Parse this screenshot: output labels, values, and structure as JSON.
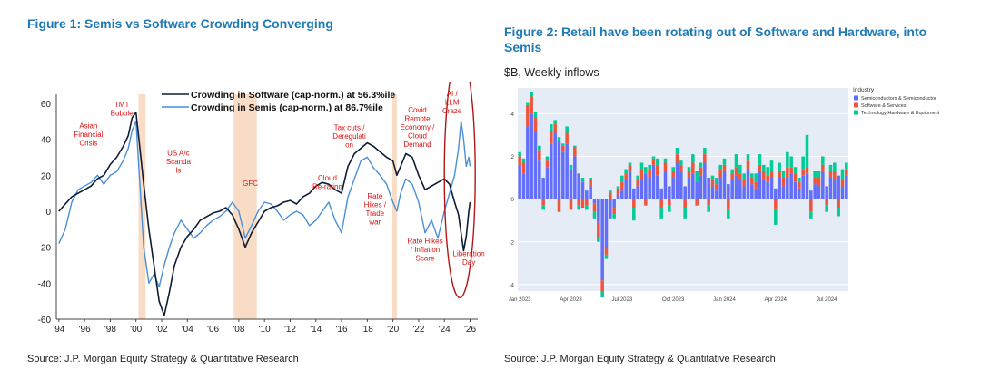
{
  "figure1": {
    "title": "Figure 1: Semis vs Software Crowding Converging",
    "source": "Source: J.P. Morgan Equity Strategy & Quantitative Research"
  },
  "figure2": {
    "title_line1": "Figure 2: Retail have been rotating out of Software and Hardware, into",
    "title_line2": "Semis",
    "subtitle": "$B, Weekly inflows",
    "source": "Source: J.P. Morgan Equity Strategy & Quantitative Research"
  },
  "chart_data": [
    {
      "type": "line",
      "title": "Figure 1: Semis vs Software Crowding Converging",
      "x_ticks": [
        "'94",
        "'96",
        "'98",
        "'00",
        "'02",
        "'04",
        "'06",
        "'08",
        "'10",
        "'12",
        "'14",
        "'16",
        "'18",
        "'20",
        "'22",
        "'24",
        "'26"
      ],
      "xlim": [
        1993.8,
        2026.6
      ],
      "ylim": [
        -60,
        65
      ],
      "y_ticks": [
        60,
        40,
        20,
        0,
        -20,
        -40,
        -60
      ],
      "legend_placement": "top-center",
      "grid": false,
      "colors": {
        "software": "#101c33",
        "semis": "#4a8fd6",
        "shade": "#f9dcc6",
        "annotation": "#dd1111",
        "ellipse": "#b01818"
      },
      "shaded_periods": [
        [
          2000.2,
          2000.75
        ],
        [
          2007.6,
          2009.4
        ],
        [
          2019.95,
          2020.3
        ]
      ],
      "series": [
        {
          "name": "Crowding in Software (cap-norm.) at 56.3%ile",
          "x": [
            1994.0,
            1994.5,
            1995.0,
            1995.5,
            1996.0,
            1996.5,
            1997.0,
            1997.5,
            1998.0,
            1998.5,
            1999.0,
            1999.4,
            1999.7,
            2000.0,
            2000.3,
            2000.6,
            2001.0,
            2001.4,
            2001.8,
            2002.2,
            2002.6,
            2003.0,
            2003.5,
            2004.0,
            2004.5,
            2005.0,
            2005.5,
            2006.0,
            2006.5,
            2007.0,
            2007.5,
            2008.0,
            2008.5,
            2009.0,
            2009.5,
            2010.0,
            2010.5,
            2011.0,
            2011.5,
            2012.0,
            2012.5,
            2013.0,
            2013.5,
            2014.0,
            2014.5,
            2015.0,
            2015.5,
            2016.0,
            2016.5,
            2017.0,
            2017.5,
            2018.0,
            2018.5,
            2019.0,
            2019.5,
            2020.0,
            2020.3,
            2020.6,
            2021.0,
            2021.5,
            2022.0,
            2022.5,
            2023.0,
            2023.5,
            2024.0,
            2024.4,
            2024.8,
            2025.1,
            2025.3,
            2025.5,
            2025.7,
            2025.9,
            2026.0
          ],
          "y": [
            0,
            4,
            8,
            10,
            12,
            14,
            18,
            20,
            26,
            30,
            36,
            42,
            52,
            55,
            35,
            15,
            -10,
            -30,
            -50,
            -58,
            -45,
            -30,
            -20,
            -14,
            -10,
            -5,
            -3,
            -1,
            0,
            2,
            -2,
            -10,
            -20,
            -12,
            -6,
            0,
            2,
            3,
            5,
            6,
            4,
            8,
            10,
            14,
            16,
            15,
            12,
            10,
            25,
            32,
            35,
            38,
            36,
            33,
            30,
            28,
            20,
            25,
            32,
            30,
            20,
            12,
            14,
            16,
            18,
            15,
            5,
            -2,
            -12,
            -22,
            -14,
            0,
            5
          ]
        },
        {
          "name": "Crowding in Semis (cap-norm.) at 86.7%ile",
          "x": [
            1994.0,
            1994.5,
            1995.0,
            1995.5,
            1996.0,
            1996.5,
            1997.0,
            1997.5,
            1998.0,
            1998.5,
            1999.0,
            1999.4,
            1999.7,
            2000.0,
            2000.3,
            2000.6,
            2001.0,
            2001.4,
            2001.8,
            2002.2,
            2002.6,
            2003.0,
            2003.5,
            2004.0,
            2004.5,
            2005.0,
            2005.5,
            2006.0,
            2006.5,
            2007.0,
            2007.5,
            2008.0,
            2008.5,
            2009.0,
            2009.5,
            2010.0,
            2010.5,
            2011.0,
            2011.5,
            2012.0,
            2012.5,
            2013.0,
            2013.5,
            2014.0,
            2014.5,
            2015.0,
            2015.5,
            2016.0,
            2016.5,
            2017.0,
            2017.5,
            2018.0,
            2018.5,
            2019.0,
            2019.5,
            2020.0,
            2020.3,
            2020.6,
            2021.0,
            2021.5,
            2022.0,
            2022.5,
            2023.0,
            2023.5,
            2024.0,
            2024.4,
            2024.8,
            2025.1,
            2025.3,
            2025.5,
            2025.7,
            2025.9,
            2026.0
          ],
          "y": [
            -18,
            -10,
            5,
            12,
            14,
            16,
            20,
            15,
            20,
            22,
            28,
            35,
            45,
            50,
            15,
            -20,
            -40,
            -35,
            -42,
            -30,
            -20,
            -12,
            -5,
            -10,
            -15,
            -12,
            -8,
            -5,
            -3,
            0,
            5,
            0,
            -15,
            -8,
            0,
            5,
            4,
            0,
            -5,
            -2,
            0,
            -2,
            -8,
            -5,
            0,
            5,
            -5,
            -12,
            8,
            18,
            28,
            30,
            24,
            20,
            15,
            5,
            0,
            10,
            18,
            15,
            5,
            -12,
            -5,
            -15,
            0,
            10,
            20,
            35,
            50,
            40,
            25,
            30,
            25
          ]
        }
      ],
      "annotations": [
        {
          "text": "TMT\nBubble",
          "x": 1998.9,
          "y": 58
        },
        {
          "text": "Asian\nFinancial\nCrisis",
          "x": 1996.3,
          "y": 46
        },
        {
          "text": "US A/c\nScanda\nls",
          "x": 2003.3,
          "y": 31
        },
        {
          "text": "GFC",
          "x": 2008.9,
          "y": 14
        },
        {
          "text": "Cloud\nRe-rating",
          "x": 2014.9,
          "y": 17
        },
        {
          "text": "Tax cuts /\nDeregulati\non",
          "x": 2016.6,
          "y": 45
        },
        {
          "text": "Rate\nHikes /\nTrade\nwar",
          "x": 2018.6,
          "y": 7
        },
        {
          "text": "Covid\nRemote\nEconomy /\nCloud\nDemand",
          "x": 2021.9,
          "y": 55
        },
        {
          "text": "Rate Hikes\n/ Inflation\nScare",
          "x": 2022.5,
          "y": -18
        },
        {
          "text": "AI /\nLLM\nCraze",
          "x": 2024.6,
          "y": 64
        },
        {
          "text": "Liberation\nDay",
          "x": 2025.9,
          "y": -25
        }
      ]
    },
    {
      "type": "bar",
      "stacked": true,
      "title": "Figure 2: Retail have been rotating out of Software and Hardware, into Semis",
      "ylabel": "$B, Weekly inflows",
      "ylim": [
        -4.3,
        5.2
      ],
      "y_ticks": [
        4,
        2,
        0,
        -2,
        -4
      ],
      "x_ticks": [
        "Jan 2023",
        "Apr 2023",
        "Jul 2023",
        "Oct 2023",
        "Jan 2024",
        "Apr 2024",
        "Jul 2024"
      ],
      "legend_title": "Industry",
      "plot_background": "#e5ecf6",
      "series": [
        {
          "name": "Semiconductors & Semiconductor",
          "color": "#636efa",
          "values": [
            1.6,
            1.2,
            3.4,
            4.0,
            3.2,
            1.8,
            1.0,
            1.5,
            2.6,
            3.1,
            2.7,
            2.2,
            2.6,
            1.4,
            2.0,
            1.2,
            0.8,
            0.4,
            0.6,
            -0.2,
            -1.1,
            -3.8,
            -2.3,
            -0.9,
            -0.4,
            0.2,
            0.4,
            0.9,
            1.3,
            0.5,
            0.6,
            0.9,
            1.2,
            1.0,
            1.6,
            1.1,
            0.5,
            1.3,
            0.6,
            1.0,
            1.7,
            1.3,
            0.6,
            1.0,
            1.2,
            0.8,
            1.1,
            1.7,
            1.0,
            0.6,
            0.4,
            1.0,
            1.3,
            0.7,
            0.9,
            1.1,
            0.9,
            0.6,
            1.4,
            0.7,
            0.5,
            1.3,
            0.9,
            0.8,
            1.0,
            0.5,
            1.0,
            0.6,
            1.0,
            1.2,
            0.8,
            0.5,
            1.1,
            1.2,
            0.4,
            0.7,
            0.6,
            1.3,
            0.6,
            1.0,
            0.9,
            1.1,
            0.6,
            1.1
          ]
        },
        {
          "name": "Software & Services",
          "color": "#ef553b",
          "values": [
            0.4,
            0.5,
            1.0,
            0.8,
            0.6,
            0.5,
            -0.3,
            0.3,
            0.6,
            0.4,
            -0.6,
            0.3,
            0.5,
            -0.5,
            0.4,
            -0.3,
            -0.4,
            -0.3,
            0.3,
            -0.4,
            -0.7,
            -0.5,
            -0.3,
            0.3,
            -0.3,
            0.3,
            0.4,
            0.3,
            0.3,
            -0.4,
            0.3,
            0.5,
            -0.3,
            0.4,
            0.3,
            0.5,
            -0.4,
            0.4,
            -0.3,
            0.3,
            0.4,
            0.3,
            -0.4,
            0.3,
            0.5,
            -0.3,
            0.4,
            0.4,
            -0.3,
            0.3,
            0.3,
            0.4,
            0.3,
            -0.5,
            0.3,
            0.4,
            0.3,
            0.3,
            0.4,
            0.3,
            0.3,
            0.3,
            0.4,
            0.3,
            0.3,
            -0.5,
            0.3,
            0.4,
            0.5,
            0.3,
            0.4,
            0.3,
            0.3,
            0.3,
            -0.6,
            0.3,
            0.4,
            0.3,
            -0.3,
            0.3,
            0.4,
            -0.4,
            0.3,
            0.3
          ]
        },
        {
          "name": "Technology Hardware & Equipment",
          "color": "#00cc96",
          "values": [
            0.2,
            0.2,
            0.1,
            0.2,
            0.3,
            0.2,
            -0.2,
            0.2,
            0.3,
            0.2,
            0.2,
            0.1,
            0.3,
            0.2,
            0.1,
            -0.2,
            0.2,
            -0.2,
            0.1,
            -0.3,
            -0.2,
            -0.3,
            -0.2,
            0.1,
            -0.2,
            0.1,
            0.3,
            0.2,
            0.1,
            -0.6,
            0.2,
            0.3,
            0.3,
            0.2,
            0.1,
            0.3,
            -0.5,
            0.2,
            -0.3,
            0.2,
            0.3,
            0.2,
            -0.5,
            0.2,
            0.4,
            0.5,
            0.2,
            0.3,
            -0.3,
            0.2,
            0.3,
            0.2,
            0.3,
            -0.4,
            0.2,
            0.6,
            0.4,
            0.3,
            0.3,
            0.2,
            0.4,
            0.5,
            0.3,
            0.4,
            0.5,
            -0.7,
            0.4,
            0.3,
            0.7,
            0.5,
            0.3,
            0.2,
            0.6,
            1.5,
            -0.3,
            0.3,
            0.3,
            0.4,
            -0.3,
            0.3,
            0.4,
            -0.4,
            0.5,
            0.3
          ]
        }
      ]
    }
  ]
}
